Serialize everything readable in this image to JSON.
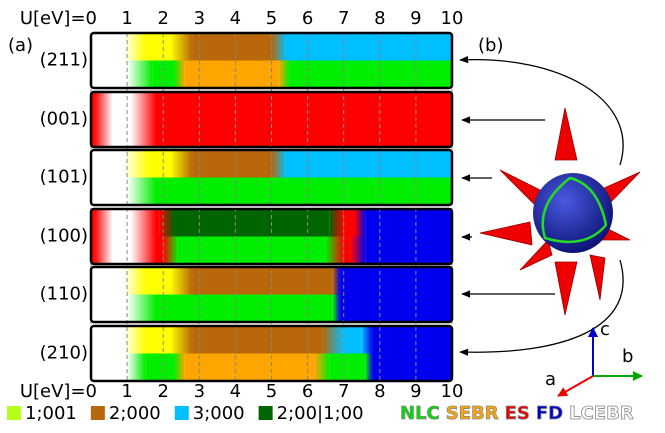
{
  "axis": {
    "ticks": [
      {
        "value": 0,
        "label": "U[eV]=0"
      },
      1,
      2,
      3,
      4,
      5,
      6,
      7,
      8,
      9,
      10
    ]
  },
  "panel_labels": [
    "(a)",
    "(b)"
  ],
  "rows": [
    {
      "label": "(211)",
      "bands": [
        [
          {
            "from": 0,
            "to": 0.9,
            "color": "#ffffff"
          },
          {
            "from": 1.5,
            "to": 2.2,
            "color": "#ffff00"
          },
          {
            "from": 2.8,
            "to": 5,
            "color": "#b8680a"
          },
          {
            "from": 5.4,
            "to": 10,
            "color": "#00bfff"
          }
        ],
        [
          {
            "from": 0,
            "to": 1,
            "color": "#ffffff"
          },
          {
            "from": 1.7,
            "to": 2.3,
            "color": "#00ee00"
          },
          {
            "from": 2.6,
            "to": 5.2,
            "color": "#ffa500"
          },
          {
            "from": 5.5,
            "to": 10,
            "color": "#00ee00"
          }
        ]
      ]
    },
    {
      "label": "(001)",
      "bands": [
        [
          {
            "from": 0,
            "to": 0.1,
            "color": "#ff0000"
          },
          {
            "from": 0.6,
            "to": 1.1,
            "color": "#ffffff"
          },
          {
            "from": 1.8,
            "to": 10,
            "color": "#ff0000"
          }
        ]
      ]
    },
    {
      "label": "(101)",
      "bands": [
        [
          {
            "from": 0,
            "to": 0.9,
            "color": "#ffffff"
          },
          {
            "from": 1.6,
            "to": 2.2,
            "color": "#ffff00"
          },
          {
            "from": 2.8,
            "to": 5,
            "color": "#b8680a"
          },
          {
            "from": 5.4,
            "to": 10,
            "color": "#00bfff"
          }
        ],
        [
          {
            "from": 0,
            "to": 1,
            "color": "#ffffff"
          },
          {
            "from": 1.8,
            "to": 10,
            "color": "#00ee00"
          }
        ]
      ]
    },
    {
      "label": "(100)",
      "bands": [
        [
          {
            "from": 0,
            "to": 0.1,
            "color": "#ff0000"
          },
          {
            "from": 0.6,
            "to": 1.1,
            "color": "#ffffff"
          },
          {
            "from": 1.8,
            "to": 1.9,
            "color": "#ff0000"
          },
          {
            "from": 2.3,
            "to": 6.6,
            "color": "#006400"
          },
          {
            "from": 7,
            "to": 7.3,
            "color": "#ff0000"
          },
          {
            "from": 7.6,
            "to": 10,
            "color": "#0000ee"
          }
        ],
        [
          {
            "from": 0,
            "to": 0.1,
            "color": "#ff0000"
          },
          {
            "from": 0.6,
            "to": 1.1,
            "color": "#ffffff"
          },
          {
            "from": 1.8,
            "to": 2,
            "color": "#ff0000"
          },
          {
            "from": 2.4,
            "to": 6.5,
            "color": "#00ee00"
          },
          {
            "from": 7,
            "to": 7.2,
            "color": "#ff0000"
          },
          {
            "from": 7.6,
            "to": 10,
            "color": "#0000ee"
          }
        ]
      ]
    },
    {
      "label": "(110)",
      "bands": [
        [
          {
            "from": 0,
            "to": 0.9,
            "color": "#ffffff"
          },
          {
            "from": 1.5,
            "to": 2.2,
            "color": "#ffff00"
          },
          {
            "from": 2.8,
            "to": 6.7,
            "color": "#b8680a"
          },
          {
            "from": 6.9,
            "to": 10,
            "color": "#0000ee"
          }
        ],
        [
          {
            "from": 0,
            "to": 1,
            "color": "#ffffff"
          },
          {
            "from": 1.8,
            "to": 6.7,
            "color": "#00ee00"
          },
          {
            "from": 6.9,
            "to": 10,
            "color": "#0000ee"
          }
        ]
      ]
    },
    {
      "label": "(210)",
      "bands": [
        [
          {
            "from": 0,
            "to": 0.9,
            "color": "#ffffff"
          },
          {
            "from": 1.5,
            "to": 2.2,
            "color": "#ffff00"
          },
          {
            "from": 2.8,
            "to": 6.4,
            "color": "#b8680a"
          },
          {
            "from": 7,
            "to": 7.5,
            "color": "#00bfff"
          },
          {
            "from": 7.8,
            "to": 10,
            "color": "#0000ee"
          }
        ],
        [
          {
            "from": 0,
            "to": 1,
            "color": "#ffffff"
          },
          {
            "from": 1.5,
            "to": 2.3,
            "color": "#00ee00"
          },
          {
            "from": 2.6,
            "to": 6.2,
            "color": "#ffa500"
          },
          {
            "from": 6.6,
            "to": 7.6,
            "color": "#00ee00"
          },
          {
            "from": 7.8,
            "to": 10,
            "color": "#0000ee"
          }
        ]
      ]
    }
  ],
  "legend": [
    {
      "color": "#b5ff1a",
      "label": "1;001"
    },
    {
      "color": "#b8680a",
      "label": "2;000"
    },
    {
      "color": "#00bfff",
      "label": "3;000"
    },
    {
      "color": "#006400",
      "label": "2;00|1;00"
    }
  ],
  "phases": [
    {
      "label": "NLC",
      "color": "#00dd00"
    },
    {
      "label": "SEBR",
      "color": "#ffa500"
    },
    {
      "label": "ES",
      "color": "#ee0000"
    },
    {
      "label": "FD",
      "color": "#0000cc"
    },
    {
      "label": "LCEBR",
      "color": "#ffffff"
    }
  ],
  "crystal_axes": [
    "a",
    "b",
    "c"
  ]
}
